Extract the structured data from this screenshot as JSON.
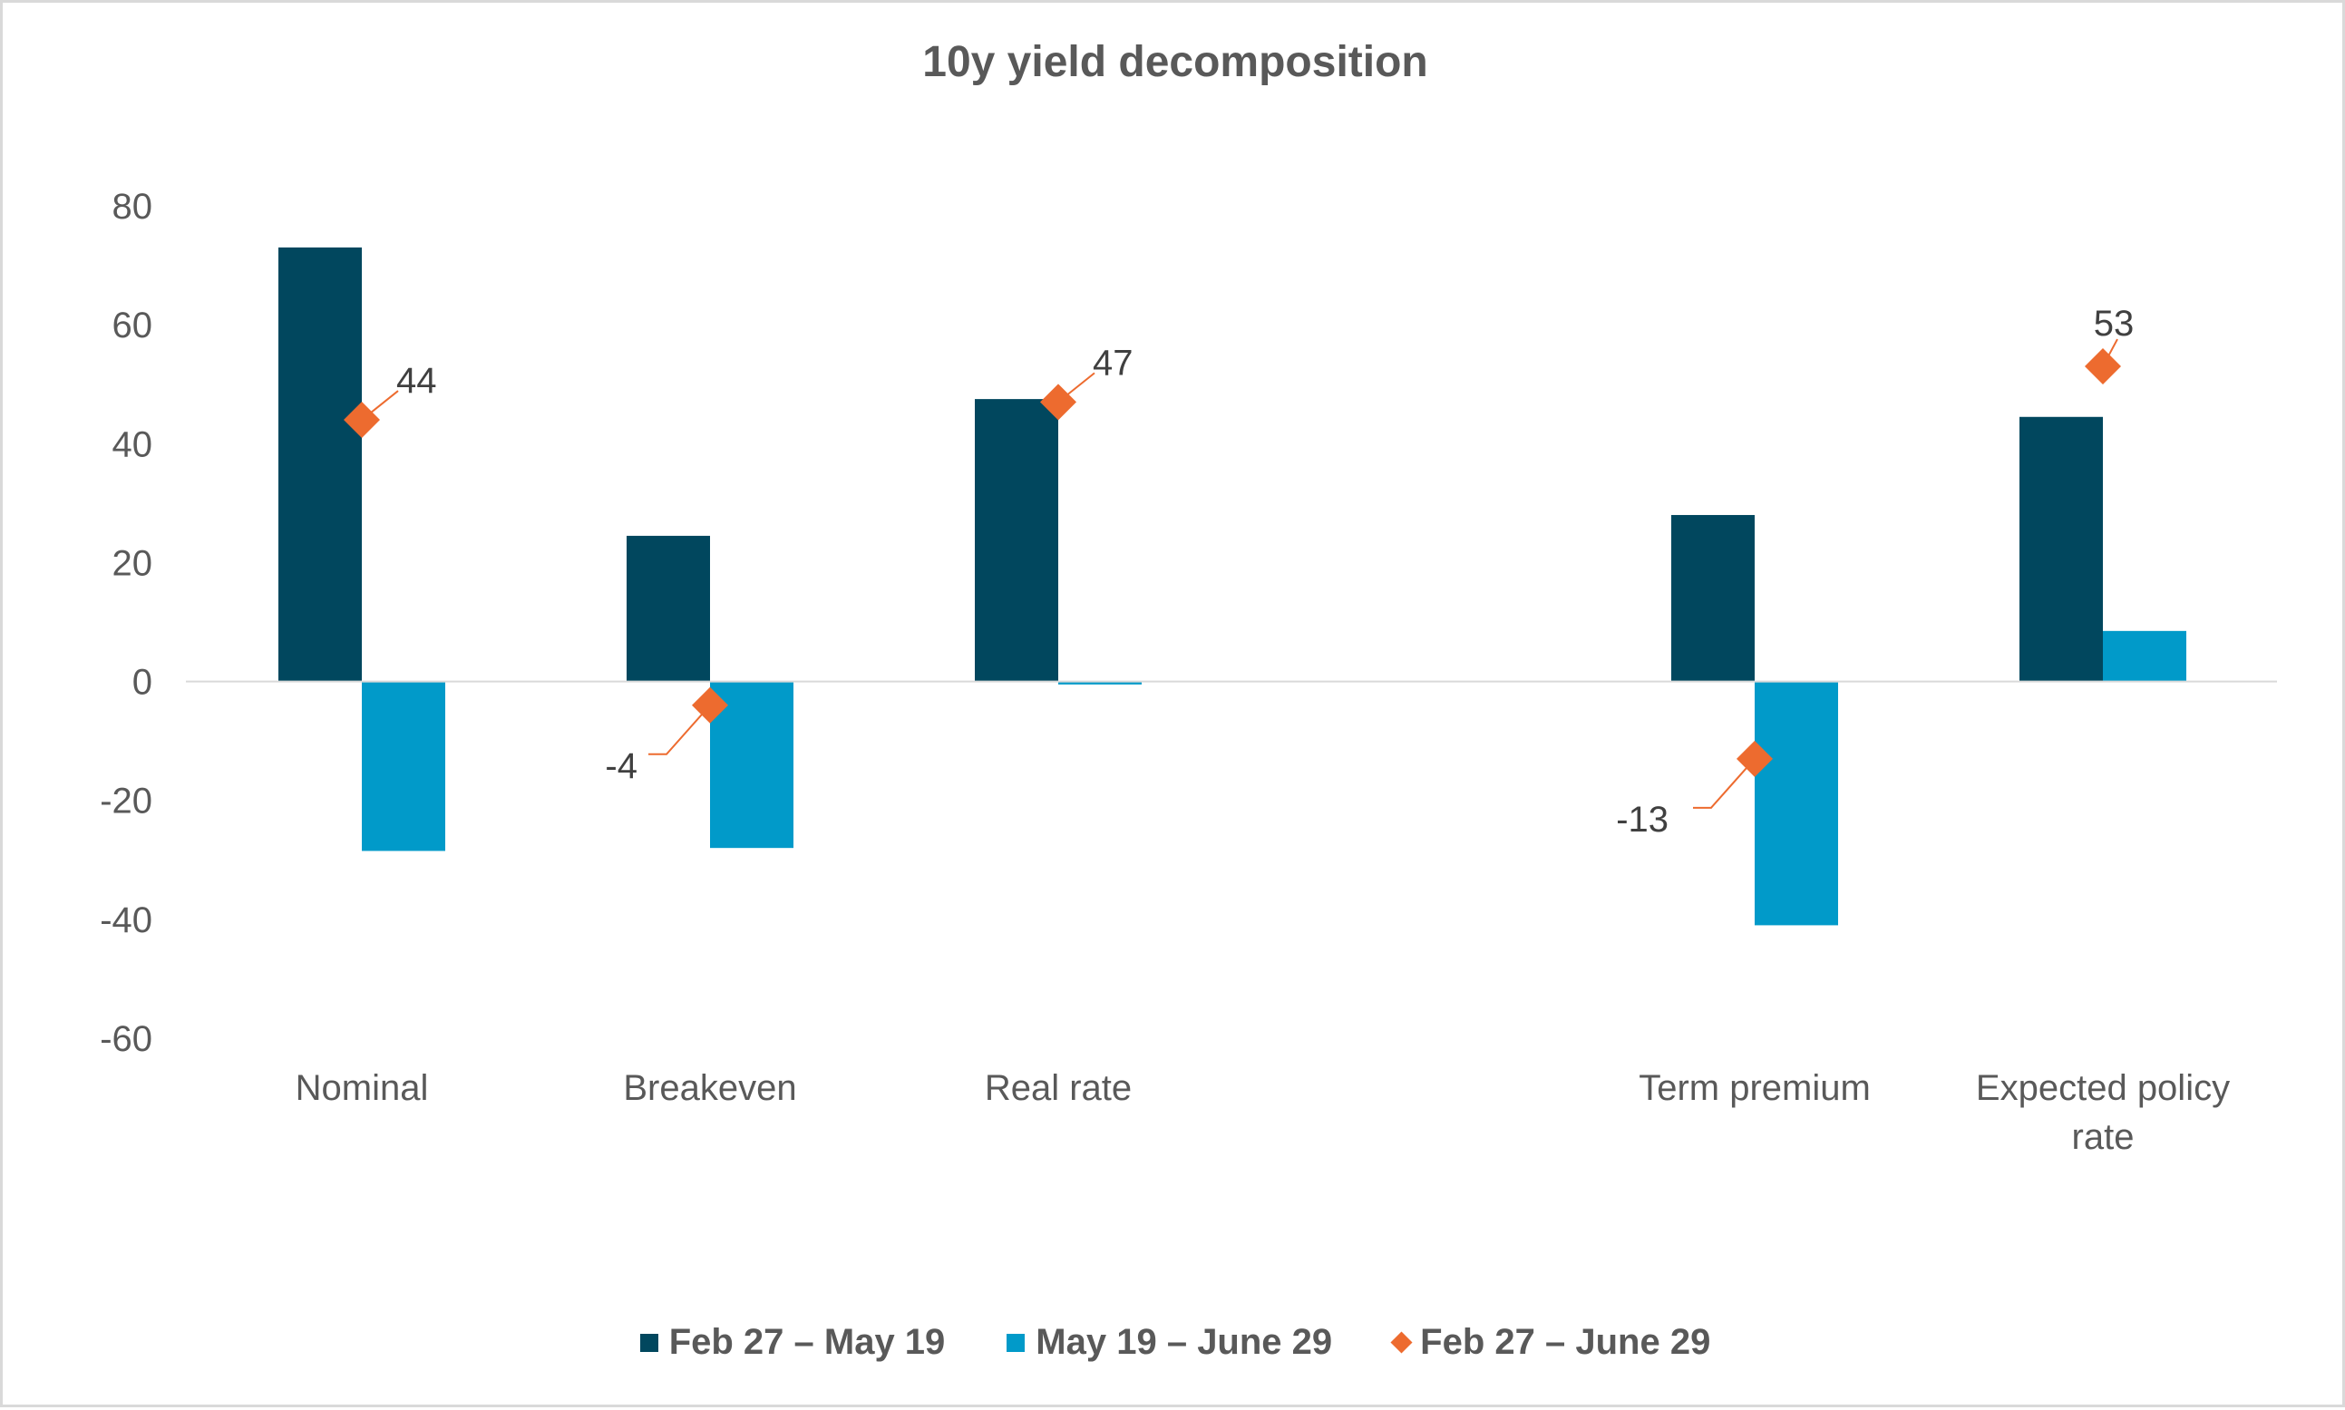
{
  "chart_data": {
    "type": "bar",
    "title": "10y yield decomposition",
    "categories": [
      "Nominal",
      "Breakeven",
      "Real rate",
      "",
      "Term premium",
      "Expected policy rate"
    ],
    "category_label_lines": [
      [
        "Nominal"
      ],
      [
        "Breakeven"
      ],
      [
        "Real rate"
      ],
      [],
      [
        "Term premium"
      ],
      [
        "Expected policy",
        "rate"
      ]
    ],
    "series": [
      {
        "name": "Feb 27 – May 19",
        "kind": "bar",
        "color": "#01475e",
        "values": [
          73,
          24.5,
          47.5,
          null,
          28,
          44.5
        ]
      },
      {
        "name": "May 19 – June 29",
        "kind": "bar",
        "color": "#019ac9",
        "values": [
          -28.5,
          -28,
          -0.5,
          null,
          -41,
          8.5
        ]
      },
      {
        "name": "Feb 27 – June 29",
        "kind": "marker",
        "marker": "diamond",
        "color": "#ed6b2f",
        "values": [
          44,
          -4,
          47,
          null,
          -13,
          53
        ],
        "data_labels": [
          "44",
          "-4",
          "47",
          "",
          "-13",
          "53"
        ]
      }
    ],
    "ylim": [
      -60,
      80
    ],
    "yticks": [
      "80",
      "60",
      "40",
      "20",
      "0",
      "-20",
      "-40",
      "-60"
    ],
    "xlabel": "",
    "ylabel": "",
    "grid": false,
    "legend_position": "bottom"
  }
}
